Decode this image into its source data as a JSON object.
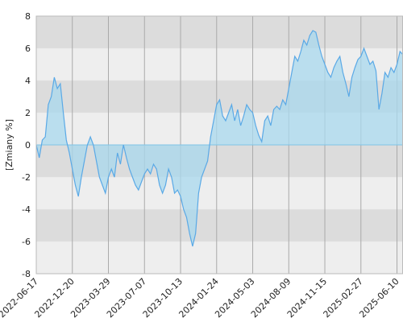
{
  "chart_data": {
    "type": "area",
    "ylabel": "[Zmiany %]",
    "categories": [
      "2022-06-17",
      null,
      null,
      null,
      null,
      null,
      null,
      null,
      null,
      null,
      null,
      null,
      "2022-12-20",
      null,
      null,
      null,
      null,
      null,
      null,
      null,
      null,
      null,
      null,
      null,
      "2023-03-29",
      null,
      null,
      null,
      null,
      null,
      null,
      null,
      null,
      null,
      null,
      null,
      "2023-07-07",
      null,
      null,
      null,
      null,
      null,
      null,
      null,
      null,
      null,
      null,
      null,
      "2023-10-13",
      null,
      null,
      null,
      null,
      null,
      null,
      null,
      null,
      null,
      null,
      null,
      "2024-01-24",
      null,
      null,
      null,
      null,
      null,
      null,
      null,
      null,
      null,
      null,
      null,
      "2024-05-03",
      null,
      null,
      null,
      null,
      null,
      null,
      null,
      null,
      null,
      null,
      null,
      "2024-08-09",
      null,
      null,
      null,
      null,
      null,
      null,
      null,
      null,
      null,
      null,
      null,
      "2024-11-15",
      null,
      null,
      null,
      null,
      null,
      null,
      null,
      null,
      null,
      null,
      null,
      "2025-02-27",
      null,
      null,
      null,
      null,
      null,
      null,
      null,
      null,
      null,
      null,
      null,
      "2025-06-10",
      null,
      null
    ],
    "values": [
      0,
      -0.8,
      0.3,
      0.5,
      2.5,
      3,
      4.2,
      3.5,
      3.8,
      2,
      0.3,
      -0.5,
      -1.5,
      -2.5,
      -3.2,
      -2,
      -1,
      0,
      0.5,
      0,
      -1,
      -2,
      -2.5,
      -3,
      -2,
      -1.5,
      -2,
      -0.5,
      -1.2,
      0,
      -0.8,
      -1.5,
      -2,
      -2.5,
      -2.8,
      -2.3,
      -1.8,
      -1.5,
      -1.8,
      -1.2,
      -1.5,
      -2.5,
      -3,
      -2.5,
      -1.5,
      -2,
      -3,
      -2.8,
      -3.2,
      -4,
      -4.5,
      -5.5,
      -6.3,
      -5.5,
      -3,
      -2,
      -1.5,
      -1,
      0.5,
      1.5,
      2.5,
      2.8,
      1.8,
      1.5,
      2,
      2.5,
      1.5,
      2.2,
      1.2,
      1.8,
      2.5,
      2.2,
      2,
      1.2,
      0.6,
      0.2,
      1.5,
      1.8,
      1.2,
      2.2,
      2.4,
      2.2,
      2.8,
      2.5,
      3.5,
      4.5,
      5.5,
      5.2,
      5.8,
      6.5,
      6.2,
      6.8,
      7.1,
      7,
      6.2,
      5.5,
      5,
      4.5,
      4.2,
      4.8,
      5.2,
      5.5,
      4.5,
      3.8,
      3,
      4.2,
      4.8,
      5.3,
      5.5,
      6,
      5.5,
      5,
      5.2,
      4.6,
      2.2,
      3.2,
      4.5,
      4.2,
      4.8,
      4.5,
      5,
      5.8,
      5.6
    ],
    "color": "#5aa9e6",
    "fill": "#a8d8ee",
    "ylim": [
      -8,
      8
    ],
    "yticks": [
      -8,
      -6,
      -4,
      -2,
      0,
      2,
      4,
      6,
      8
    ],
    "grid": true
  }
}
